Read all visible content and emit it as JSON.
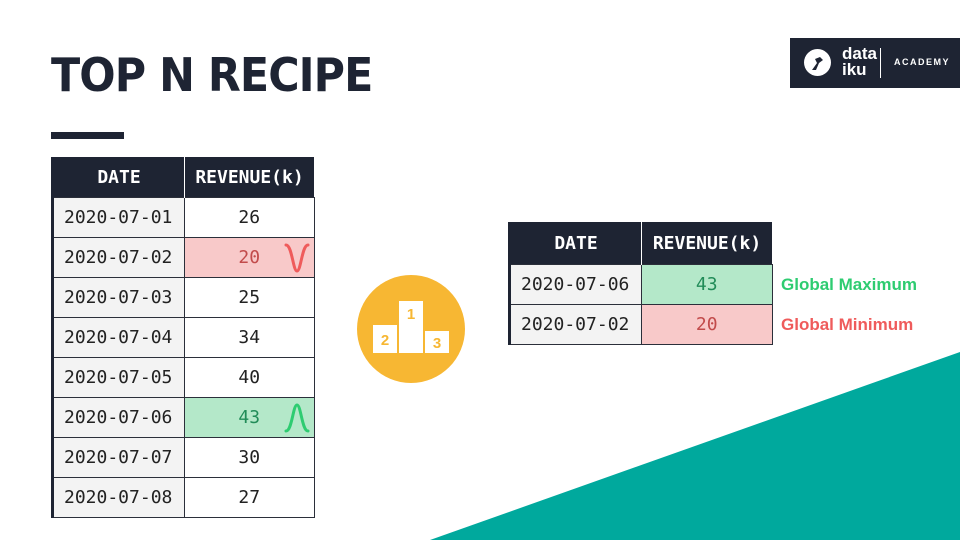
{
  "header": {
    "title": "TOP N RECIPE"
  },
  "logo": {
    "line1": "data",
    "line2": "iku",
    "academy": "ACADEMY"
  },
  "input_table": {
    "headers": [
      "DATE",
      "REVENUE(k)"
    ],
    "rows": [
      {
        "date": "2020-07-01",
        "revenue": "26"
      },
      {
        "date": "2020-07-02",
        "revenue": "20"
      },
      {
        "date": "2020-07-03",
        "revenue": "25"
      },
      {
        "date": "2020-07-04",
        "revenue": "34"
      },
      {
        "date": "2020-07-05",
        "revenue": "40"
      },
      {
        "date": "2020-07-06",
        "revenue": "43"
      },
      {
        "date": "2020-07-07",
        "revenue": "30"
      },
      {
        "date": "2020-07-08",
        "revenue": "27"
      }
    ]
  },
  "podium": {
    "first": "1",
    "second": "2",
    "third": "3"
  },
  "output_table": {
    "headers": [
      "DATE",
      "REVENUE(k)"
    ],
    "rows": [
      {
        "date": "2020-07-06",
        "revenue": "43"
      },
      {
        "date": "2020-07-02",
        "revenue": "20"
      }
    ]
  },
  "labels": {
    "global_max": "Global Maximum",
    "global_min": "Global Minimum"
  },
  "colors": {
    "navy": "#1e2433",
    "teal": "#00a99d",
    "gold": "#f7b733",
    "max_green": "#2ecc71",
    "min_red": "#ef5b5b"
  }
}
